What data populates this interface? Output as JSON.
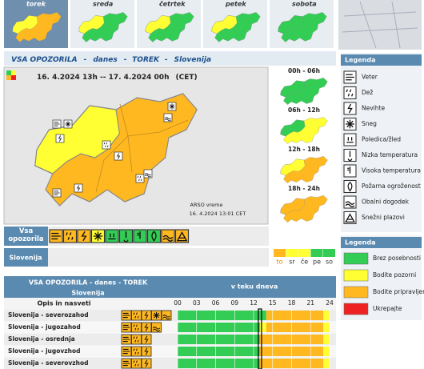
{
  "tabs": [
    "torek",
    "sreda",
    "četrtek",
    "petek",
    "sobota"
  ],
  "tab_map_levels": [
    [
      2,
      1
    ],
    [
      0,
      1
    ],
    [
      0,
      1
    ],
    [
      0,
      1
    ],
    [
      0,
      0
    ]
  ],
  "header": [
    "VSA OPOZORILA",
    "-",
    "danes",
    "-",
    "TOREK",
    "-",
    "Slovenija"
  ],
  "map": {
    "period": "16. 4.2024 13h -- 17. 4.2024 00h",
    "zone": "(CET)",
    "source": "ARSO vreme",
    "issued": "16. 4.2024 13:01 CET",
    "levels": [
      2,
      1
    ]
  },
  "periods": [
    "00h - 06h",
    "06h - 12h",
    "12h - 18h",
    "18h - 24h"
  ],
  "period_levels": [
    [
      0,
      0
    ],
    [
      1,
      0
    ],
    [
      2,
      1
    ],
    [
      2,
      2
    ]
  ],
  "legend": {
    "title": "Legenda",
    "items": [
      "Veter",
      "Dež",
      "Nevihte",
      "Sneg",
      "Poledica/žled",
      "Nizka temperatura",
      "Visoka temperatura",
      "Požarna ogroženost",
      "Obalni dogodek",
      "Snežni plazovi"
    ]
  },
  "levels": {
    "title": "Legenda",
    "items": [
      "Brez posebnosti",
      "Bodite pozorni",
      "Bodite pripravljeni",
      "Ukrepajte"
    ],
    "colors": [
      "#33cc55",
      "#ffff33",
      "#ffb820",
      "#ee2222"
    ]
  },
  "summary": {
    "label": "Vsa opozorila",
    "icon_levels": [
      2,
      2,
      2,
      1,
      0,
      0,
      0,
      0,
      2,
      2
    ],
    "region": "Slovenija",
    "days": [
      "to",
      "sr",
      "če",
      "pe",
      "so"
    ],
    "day_levels": [
      2,
      1,
      1,
      0,
      0
    ]
  },
  "table": {
    "title": "VSA OPOZORILA - danes - TOREK",
    "subtitle": "Slovenija",
    "timeline": "v teku dneva",
    "column": "Opis in nasveti",
    "hours": [
      "00",
      "03",
      "06",
      "09",
      "12",
      "15",
      "18",
      "21",
      "24"
    ],
    "now": 13,
    "rows": [
      {
        "name": "Slovenija - severozahod",
        "warnings": [
          0,
          1,
          2,
          3,
          8
        ],
        "segments": [
          {
            "from": 0,
            "to": 14,
            "level": 0
          },
          {
            "from": 14,
            "to": 23,
            "level": 2
          },
          {
            "from": 23,
            "to": 24,
            "level": 1
          }
        ]
      },
      {
        "name": "Slovenija - jugozahod",
        "warnings": [
          0,
          1,
          2,
          8
        ],
        "segments": [
          {
            "from": 0,
            "to": 13,
            "level": 0
          },
          {
            "from": 13,
            "to": 14,
            "level": 1
          },
          {
            "from": 14,
            "to": 23,
            "level": 2
          },
          {
            "from": 23,
            "to": 24,
            "level": 1
          }
        ]
      },
      {
        "name": "Slovenija - osrednja",
        "warnings": [
          0,
          1,
          2
        ],
        "segments": [
          {
            "from": 0,
            "to": 13,
            "level": 0
          },
          {
            "from": 13,
            "to": 23,
            "level": 2
          },
          {
            "from": 23,
            "to": 24,
            "level": 1
          }
        ]
      },
      {
        "name": "Slovenija - jugovzhod",
        "warnings": [
          0,
          1,
          2
        ],
        "segments": [
          {
            "from": 0,
            "to": 13,
            "level": 0
          },
          {
            "from": 13,
            "to": 23,
            "level": 2
          },
          {
            "from": 23,
            "to": 24,
            "level": 1
          }
        ]
      },
      {
        "name": "Slovenija - severovzhod",
        "warnings": [
          0,
          1,
          2
        ],
        "segments": [
          {
            "from": 0,
            "to": 13,
            "level": 0
          },
          {
            "from": 13,
            "to": 23,
            "level": 2
          },
          {
            "from": 23,
            "to": 24,
            "level": 1
          }
        ]
      }
    ]
  }
}
